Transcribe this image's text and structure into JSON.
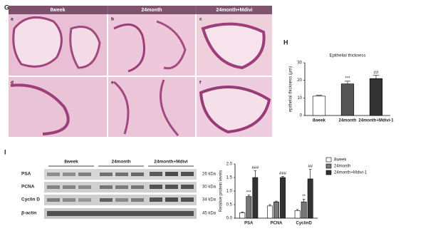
{
  "panels": {
    "g": "G",
    "h": "H",
    "i": "I"
  },
  "histology": {
    "columns": [
      "8week",
      "24month",
      "24month+Mdivi"
    ],
    "letters": [
      "a",
      "b",
      "c",
      "d",
      "e",
      "f"
    ]
  },
  "blot": {
    "groups": [
      "8week",
      "24month",
      "24month+Mdivi"
    ],
    "rows": [
      {
        "label": "PSA",
        "kda": "26 kDa"
      },
      {
        "label": "PCNA",
        "kda": "30 kDa"
      },
      {
        "label": "Cyclin D",
        "kda": "34 kDa"
      },
      {
        "label": "β-actin",
        "kda": "45 kDa"
      }
    ]
  },
  "chart_data": [
    {
      "type": "bar",
      "title": "Epithelial thickness",
      "ylabel": "epithelial thickness (μm)",
      "categories": [
        "8week",
        "24month",
        "24month+Mdivi-1"
      ],
      "values": [
        11,
        18,
        21
      ],
      "errors": [
        0.5,
        1.5,
        1.8
      ],
      "annotations": [
        null,
        "***",
        "##"
      ],
      "colors": [
        "#ffffff",
        "#555555",
        "#333333"
      ],
      "ylim": [
        0,
        30
      ],
      "yticks": [
        0,
        10,
        20,
        30
      ]
    },
    {
      "type": "bar",
      "ylabel": "Relative protein levels",
      "categories": [
        "PSA",
        "PCNA",
        "CyclinD"
      ],
      "legend": "right",
      "series": [
        {
          "name": "8week",
          "color": "#ffffff",
          "values": [
            0.2,
            0.45,
            0.28
          ],
          "errors": [
            0.03,
            0.05,
            0.04
          ],
          "annotations": [
            null,
            null,
            null
          ]
        },
        {
          "name": "24month",
          "color": "#777777",
          "values": [
            0.8,
            0.6,
            0.6
          ],
          "errors": [
            0.05,
            0.03,
            0.1
          ],
          "annotations": [
            "***",
            null,
            "**"
          ]
        },
        {
          "name": "24month+Mdivi-1",
          "color": "#333333",
          "values": [
            1.5,
            1.5,
            1.45
          ],
          "errors": [
            0.25,
            0.04,
            0.35
          ],
          "annotations": [
            "###",
            "###",
            "##"
          ]
        }
      ],
      "ylim": [
        0,
        2
      ],
      "yticks": [
        {
          "value": 0,
          "label": "0.0"
        },
        {
          "value": 0.5,
          "label": "0.5"
        },
        {
          "value": 1,
          "label": "1.0"
        },
        {
          "value": 1.5,
          "label": "1.5"
        },
        {
          "value": 2,
          "label": "2.0"
        }
      ]
    }
  ]
}
